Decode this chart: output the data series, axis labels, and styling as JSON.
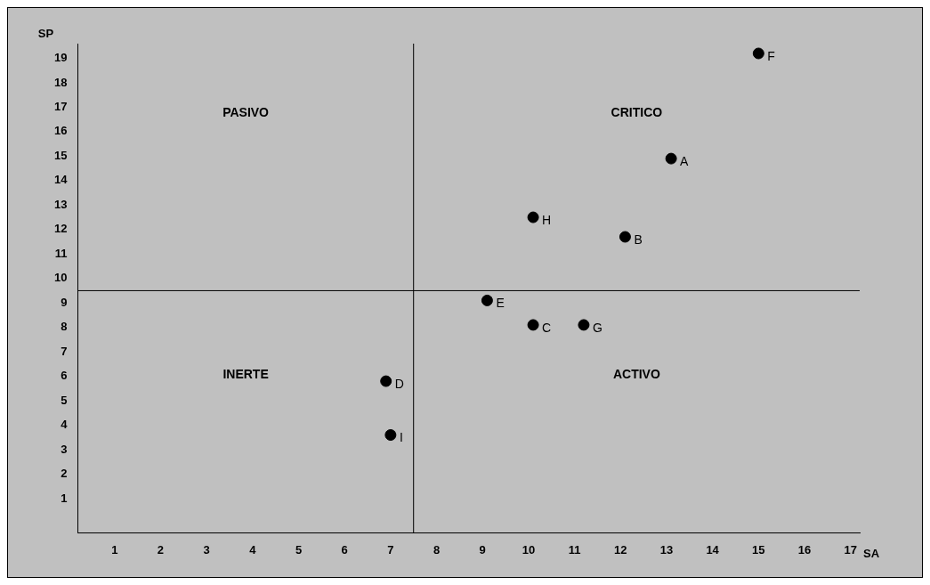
{
  "chart_data": {
    "type": "scatter",
    "xlabel": "SA",
    "ylabel": "SP",
    "x": [
      15,
      13.1,
      10.1,
      12.1,
      9.1,
      10.1,
      11.2,
      6.9,
      7
    ],
    "values": [
      19.2,
      14.9,
      12.5,
      11.7,
      9.1,
      8.1,
      8.1,
      5.8,
      3.6
    ],
    "color": "#000000",
    "marker": "circle",
    "grid": false,
    "legend": false,
    "xlim": [
      0.2,
      17.2
    ],
    "ylim": [
      -0.4,
      19.6
    ],
    "xticks": [
      1,
      2,
      3,
      4,
      5,
      6,
      7,
      8,
      9,
      10,
      11,
      12,
      13,
      14,
      15,
      16,
      17
    ],
    "yticks": [
      1,
      2,
      3,
      4,
      5,
      6,
      7,
      8,
      9,
      10,
      11,
      12,
      13,
      14,
      15,
      16,
      17,
      18,
      19
    ],
    "ref_lines": [
      {
        "axis": "x",
        "value": 7.5,
        "color": "#000000"
      },
      {
        "axis": "y",
        "value": 9.5,
        "color": "#000000"
      }
    ],
    "annotations": [
      "PASIVO",
      "CRITICO",
      "INERTE",
      "ACTIVO",
      {
        "text": "F",
        "x": 15,
        "y": 19.2
      },
      {
        "text": "A",
        "x": 13.1,
        "y": 14.9
      },
      {
        "text": "H",
        "x": 10.1,
        "y": 12.5
      },
      {
        "text": "B",
        "x": 12.1,
        "y": 11.7
      },
      {
        "text": "E",
        "x": 9.1,
        "y": 9.1
      },
      {
        "text": "C",
        "x": 10.1,
        "y": 8.1
      },
      {
        "text": "G",
        "x": 11.2,
        "y": 8.1
      },
      {
        "text": "D",
        "x": 6.9,
        "y": 5.8
      },
      {
        "text": "I",
        "x": 7,
        "y": 3.6
      }
    ]
  }
}
